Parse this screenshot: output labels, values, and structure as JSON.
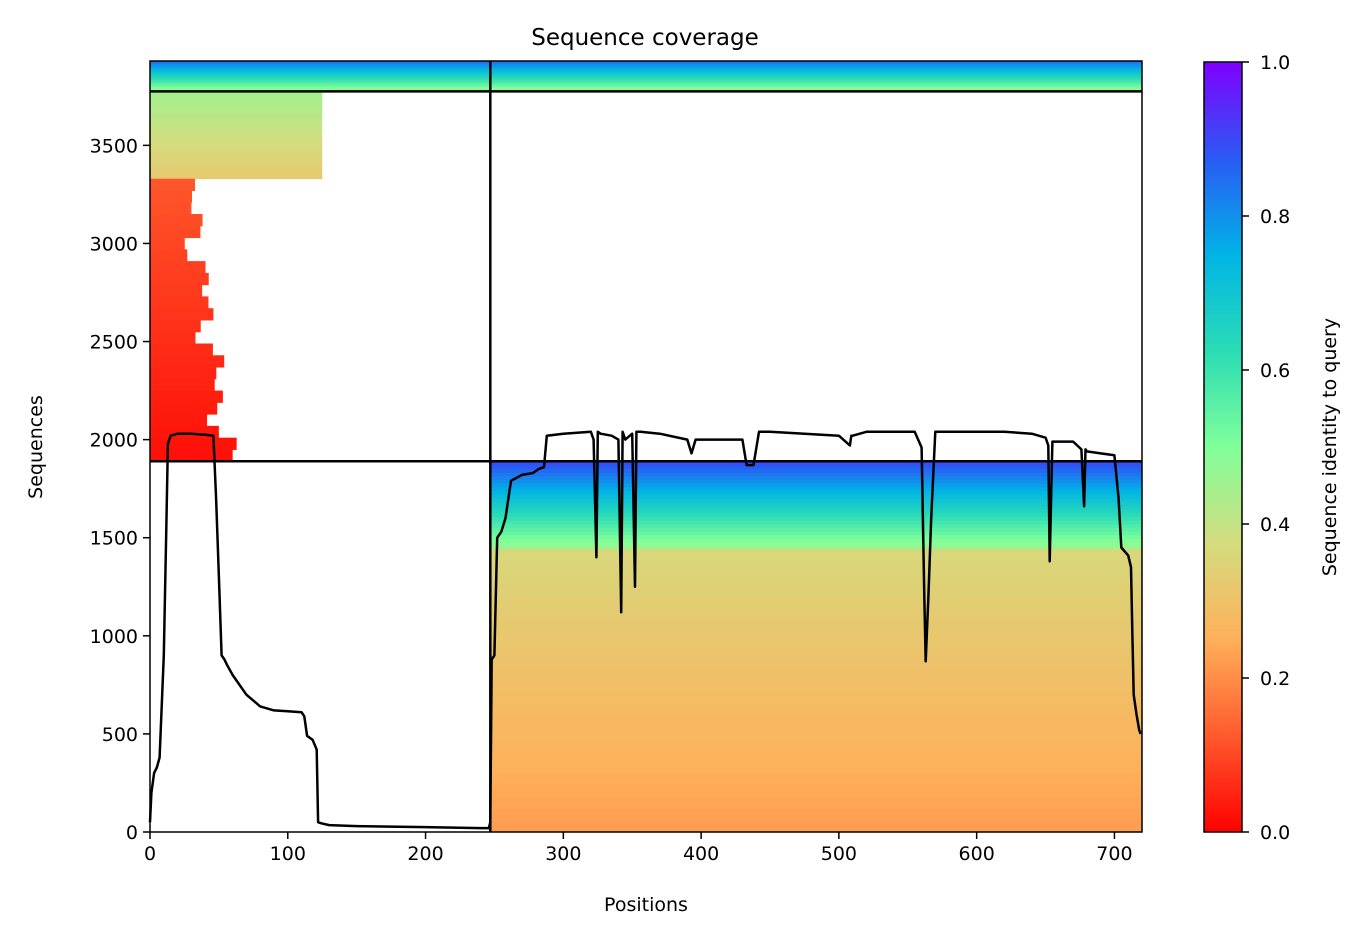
{
  "chart_data": {
    "type": "heatmap",
    "title": "Sequence coverage",
    "xlabel": "Positions",
    "ylabel": "Sequences",
    "colorbar_label": "Sequence identity to query",
    "colormap": "rainbow_r",
    "xlim": [
      0,
      720
    ],
    "ylim": [
      0,
      3930
    ],
    "x_ticks": [
      0,
      100,
      200,
      300,
      400,
      500,
      600,
      700
    ],
    "y_ticks": [
      0,
      500,
      1000,
      1500,
      2000,
      2500,
      3000,
      3500
    ],
    "colorbar_ticks": [
      0.0,
      0.2,
      0.4,
      0.6,
      0.8,
      1.0
    ],
    "colorbar_tick_labels": [
      "0.0",
      "0.2",
      "0.4",
      "0.6",
      "0.8",
      "1.0"
    ],
    "divider_lines": {
      "vertical_x": 247,
      "horizontal_y": [
        1890,
        3775
      ]
    },
    "coverage_blocks": [
      {
        "x_range": [
          0,
          247
        ],
        "y_range": [
          3775,
          3930
        ],
        "identity_range": [
          0.45,
          0.85
        ],
        "note_x_end": 125
      },
      {
        "x_range": [
          247,
          720
        ],
        "y_range": [
          3775,
          3930
        ],
        "identity_range": [
          0.45,
          0.85
        ]
      },
      {
        "x_range": [
          0,
          125
        ],
        "y_range": [
          3330,
          3775
        ],
        "identity_range": [
          0.32,
          0.45
        ]
      },
      {
        "x_range": [
          0,
          55
        ],
        "y_range": [
          1890,
          3330
        ],
        "identity_range": [
          0.02,
          0.12
        ]
      },
      {
        "x_range": [
          247,
          720
        ],
        "y_range": [
          1440,
          1890
        ],
        "identity_range": [
          0.45,
          0.9
        ]
      },
      {
        "x_range": [
          247,
          720
        ],
        "y_range": [
          0,
          1440
        ],
        "identity_range": [
          0.22,
          0.36
        ]
      }
    ],
    "coverage_line": {
      "x": [
        0,
        1,
        3,
        5,
        7,
        10,
        12,
        13,
        15,
        20,
        30,
        40,
        46,
        48,
        50,
        52,
        54,
        56,
        60,
        70,
        80,
        90,
        100,
        110,
        112,
        114,
        118,
        121,
        122,
        124,
        130,
        150,
        200,
        240,
        246,
        247,
        248,
        250,
        252,
        255,
        258,
        262,
        270,
        278,
        282,
        286,
        288,
        300,
        320,
        322,
        324,
        325,
        327,
        335,
        340,
        342,
        343,
        345,
        350,
        352,
        353,
        354,
        356,
        370,
        390,
        393,
        396,
        420,
        430,
        433,
        438,
        442,
        450,
        500,
        508,
        509,
        510,
        520,
        540,
        555,
        560,
        562,
        563,
        565,
        567,
        570,
        580,
        620,
        640,
        650,
        652,
        653,
        655,
        670,
        676,
        678,
        679,
        680,
        690,
        700,
        703,
        705,
        710,
        712,
        713,
        714,
        716,
        718,
        719
      ],
      "y": [
        50,
        200,
        300,
        330,
        380,
        900,
        1600,
        1980,
        2020,
        2030,
        2030,
        2025,
        2020,
        1700,
        1300,
        900,
        880,
        850,
        800,
        700,
        640,
        620,
        615,
        610,
        590,
        490,
        470,
        420,
        50,
        45,
        35,
        30,
        25,
        20,
        20,
        50,
        880,
        900,
        1500,
        1530,
        1600,
        1790,
        1820,
        1830,
        1850,
        1860,
        2020,
        2030,
        2040,
        2000,
        1400,
        2040,
        2030,
        2020,
        2000,
        1120,
        2040,
        2000,
        2030,
        1250,
        2040,
        2040,
        2040,
        2030,
        2000,
        1930,
        2000,
        2000,
        2000,
        1870,
        1870,
        2040,
        2040,
        2020,
        1970,
        2020,
        2020,
        2040,
        2040,
        2040,
        1960,
        1200,
        870,
        1200,
        1600,
        2040,
        2040,
        2040,
        2030,
        2010,
        1970,
        1380,
        1990,
        1990,
        1950,
        1660,
        1950,
        1940,
        1930,
        1920,
        1700,
        1450,
        1410,
        1350,
        1000,
        700,
        600,
        520,
        500
      ]
    }
  }
}
